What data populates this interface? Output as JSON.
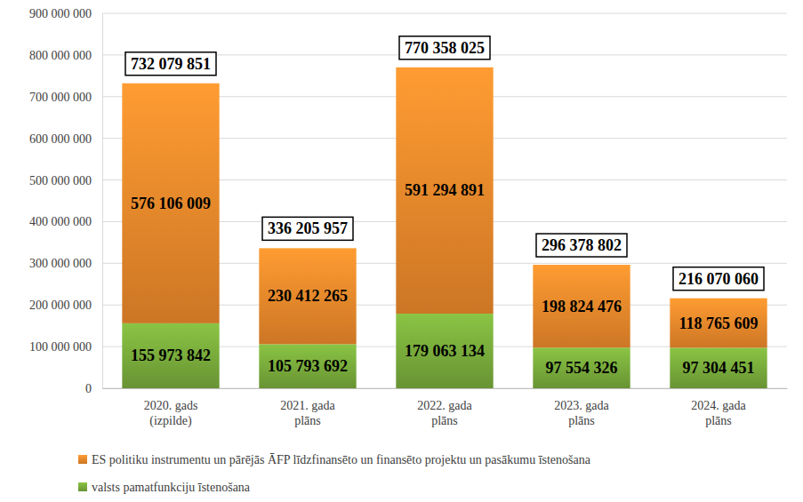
{
  "chart_data": {
    "type": "bar",
    "stacked": true,
    "data_labels": true,
    "grid": true,
    "legend": "bottom",
    "categories": [
      "2020. gads (izpilde)",
      "2021. gada plāns",
      "2022. gada plāns",
      "2023. gada plāns",
      "2024. gada plāns"
    ],
    "series": [
      {
        "name": "valsts pamatfunkciju īstenošana",
        "color": "#7aad3c",
        "values": [
          155973842,
          105793692,
          179063134,
          97554326,
          97304451
        ],
        "value_labels": [
          "155 973 842",
          "105 793 692",
          "179 063 134",
          "97 554 326",
          "97 304 451"
        ]
      },
      {
        "name": "ES politiku instrumentu un pārējās ĀFP līdzfinansēto un finansēto projektu un pasākumu īstenošana",
        "color": "#f08a2c",
        "values": [
          576106009,
          230412265,
          591294891,
          198824476,
          118765609
        ],
        "value_labels": [
          "576 106 009",
          "230 412 265",
          "591 294 891",
          "198 824 476",
          "118 765 609"
        ]
      }
    ],
    "totals": [
      732079851,
      336205957,
      770358025,
      296378802,
      216070060
    ],
    "total_labels": [
      "732 079 851",
      "336 205 957",
      "770 358 025",
      "296 378 802",
      "216 070 060"
    ],
    "ylim": [
      0,
      900000000
    ],
    "yticks": [
      0,
      {
        "value": 100000000,
        "label": "100 000 000"
      },
      {
        "value": 200000000,
        "label": "200 000 000"
      },
      {
        "value": 300000000,
        "label": "300 000 000"
      },
      {
        "value": 400000000,
        "label": "400 000 000"
      },
      {
        "value": 500000000,
        "label": "500 000 000"
      },
      {
        "value": 600000000,
        "label": "600 000 000"
      },
      {
        "value": 700000000,
        "label": "700 000 000"
      },
      {
        "value": 800000000,
        "label": "800 000 000"
      },
      {
        "value": 900000000,
        "label": "900 000 000"
      }
    ]
  }
}
